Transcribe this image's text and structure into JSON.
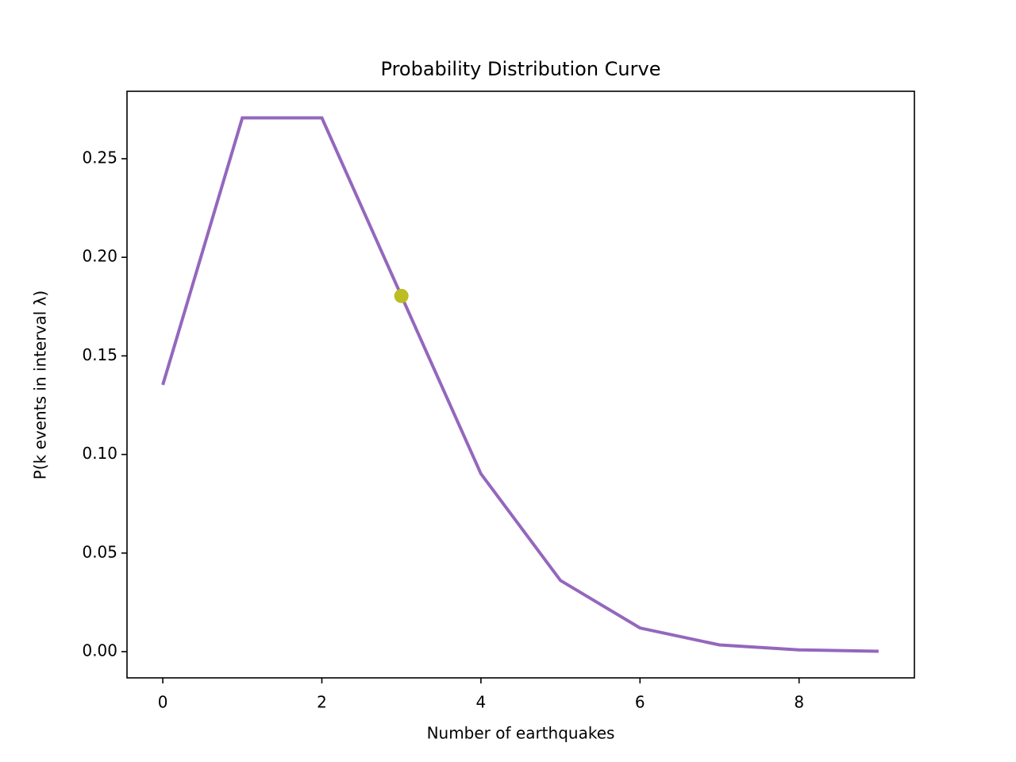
{
  "chart_data": {
    "type": "line",
    "title": "Probability Distribution Curve",
    "x_label": "Number of earthquakes",
    "y_label": "P(k events in interval λ)",
    "x": [
      0,
      1,
      2,
      3,
      4,
      5,
      6,
      7,
      8,
      9
    ],
    "values": [
      0.1353,
      0.2707,
      0.2707,
      0.1804,
      0.0902,
      0.0361,
      0.012,
      0.0034,
      0.0009,
      0.0002
    ],
    "color": "#9467bd",
    "highlight": {
      "x": 3,
      "value": 0.1804,
      "color": "#bcbd22"
    },
    "xlim": [
      -0.45,
      9.45
    ],
    "ylim": [
      -0.0133,
      0.2842
    ],
    "xticks": [
      0,
      2,
      4,
      6,
      8
    ],
    "yticks": [
      {
        "value": 0,
        "label": "0.00"
      },
      {
        "value": 0.05,
        "label": "0.05"
      },
      {
        "value": 0.1,
        "label": "0.10"
      },
      {
        "value": 0.15,
        "label": "0.15"
      },
      {
        "value": 0.2,
        "label": "0.20"
      },
      {
        "value": 0.25,
        "label": "0.25"
      }
    ]
  }
}
